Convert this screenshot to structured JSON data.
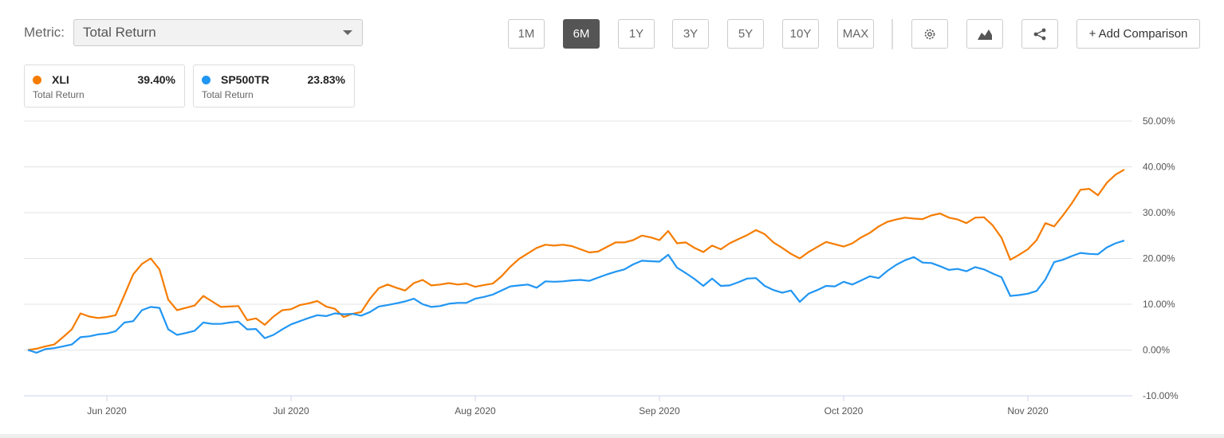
{
  "controls": {
    "metric_label": "Metric:",
    "metric": "Total Return",
    "periods": [
      "1M",
      "6M",
      "1Y",
      "3Y",
      "5Y",
      "10Y",
      "MAX"
    ],
    "selected_period": "6M",
    "add_comparison": "+ Add Comparison"
  },
  "chart_data": {
    "type": "line",
    "categories": [
      null,
      null,
      null,
      null,
      null,
      null,
      null,
      null,
      null,
      "Jun 2020",
      null,
      null,
      null,
      null,
      null,
      null,
      null,
      null,
      null,
      null,
      null,
      null,
      null,
      null,
      null,
      null,
      null,
      null,
      null,
      null,
      "Jul 2020",
      null,
      null,
      null,
      null,
      null,
      null,
      null,
      null,
      null,
      null,
      null,
      null,
      null,
      null,
      null,
      null,
      null,
      null,
      null,
      null,
      "Aug 2020",
      null,
      null,
      null,
      null,
      null,
      null,
      null,
      null,
      null,
      null,
      null,
      null,
      null,
      null,
      null,
      null,
      null,
      null,
      null,
      null,
      "Sep 2020",
      null,
      null,
      null,
      null,
      null,
      null,
      null,
      null,
      null,
      null,
      null,
      null,
      null,
      null,
      null,
      null,
      null,
      null,
      null,
      null,
      "Oct 2020",
      null,
      null,
      null,
      null,
      null,
      null,
      null,
      null,
      null,
      null,
      null,
      null,
      null,
      null,
      null,
      null,
      null,
      null,
      null,
      null,
      "Nov 2020",
      null,
      null,
      null,
      null,
      null,
      null,
      null,
      null,
      null,
      null,
      null
    ],
    "series": [
      {
        "name": "XLI",
        "color": "#f57c00",
        "metric": "Total Return",
        "summary": {
          "value": 39.4,
          "label": "39.40%"
        },
        "values": [
          0,
          0.3,
          0.8,
          1.2,
          2.8,
          4.5,
          8.0,
          7.3,
          7.0,
          7.2,
          7.6,
          12.0,
          16.5,
          18.8,
          20.0,
          17.6,
          11,
          8.7,
          9.2,
          9.7,
          11.8,
          10.6,
          9.4,
          9.5,
          9.6,
          6.5,
          6.9,
          5.5,
          7.3,
          8.7,
          8.9,
          9.8,
          10.2,
          10.7,
          9.5,
          9.0,
          7.2,
          7.9,
          8.3,
          11.2,
          13.5,
          14.3,
          13.6,
          13.0,
          14.6,
          15.3,
          14.1,
          14.3,
          14.6,
          14.3,
          14.5,
          13.8,
          14.2,
          14.5,
          16.1,
          18.2,
          19.9,
          21.1,
          22.3,
          23.0,
          22.8,
          23.0,
          22.7,
          22.0,
          21.3,
          21.5,
          22.5,
          23.5,
          23.5,
          24.0,
          25.0,
          24.6,
          24.0,
          26.0,
          23.3,
          23.5,
          22.3,
          21.4,
          22.8,
          22.0,
          23.3,
          24.2,
          25.1,
          26.2,
          25.3,
          23.5,
          22.3,
          21.0,
          20.0,
          21.4,
          22.5,
          23.6,
          23.1,
          22.6,
          23.3,
          24.6,
          25.6,
          27.0,
          28.0,
          28.5,
          28.9,
          28.7,
          28.6,
          29.4,
          29.8,
          28.9,
          28.5,
          27.7,
          28.9,
          29.0,
          27.2,
          24.5,
          19.7,
          20.8,
          22.0,
          24.0,
          27.7,
          27.0,
          29.4,
          32.0,
          35.0,
          35.2,
          33.8,
          36.5,
          38.3,
          39.4
        ]
      },
      {
        "name": "SP500TR",
        "color": "#2196f3",
        "metric": "Total Return",
        "summary": {
          "value": 23.83,
          "label": "23.83%"
        },
        "values": [
          0,
          -0.6,
          0.2,
          0.4,
          0.8,
          1.2,
          2.8,
          3.0,
          3.4,
          3.6,
          4.1,
          6.0,
          6.3,
          8.7,
          9.4,
          9.2,
          4.5,
          3.3,
          3.7,
          4.2,
          6.0,
          5.7,
          5.7,
          6.0,
          6.2,
          4.5,
          4.6,
          2.6,
          3.3,
          4.5,
          5.6,
          6.3,
          7.0,
          7.6,
          7.4,
          8.0,
          7.8,
          7.9,
          7.5,
          8.3,
          9.5,
          9.8,
          10.2,
          10.6,
          11.2,
          10.0,
          9.4,
          9.6,
          10.1,
          10.3,
          10.3,
          11.2,
          11.6,
          12.1,
          13.0,
          13.9,
          14.1,
          14.3,
          13.6,
          15.0,
          14.9,
          15.0,
          15.2,
          15.3,
          15.1,
          15.8,
          16.5,
          17.1,
          17.6,
          18.7,
          19.5,
          19.4,
          19.3,
          20.8,
          18.0,
          16.8,
          15.5,
          14.0,
          15.6,
          14.0,
          14.1,
          14.8,
          15.6,
          15.7,
          14.0,
          13.1,
          12.5,
          13.0,
          10.5,
          12.3,
          13.1,
          14.0,
          13.9,
          14.9,
          14.3,
          15.2,
          16.1,
          15.7,
          17.3,
          18.6,
          19.6,
          20.3,
          19.1,
          19.0,
          18.3,
          17.5,
          17.7,
          17.2,
          18.1,
          17.6,
          16.7,
          15.9,
          11.8,
          12.0,
          12.3,
          12.9,
          15.4,
          19.2,
          19.7,
          20.5,
          21.2,
          21.0,
          20.9,
          22.4,
          23.3,
          23.9
        ]
      }
    ],
    "ylim": [
      -10,
      50
    ],
    "yticks": [
      {
        "value": -10,
        "label": "-10.00%"
      },
      {
        "value": 0,
        "label": "0.00%"
      },
      {
        "value": 10,
        "label": "10.00%"
      },
      {
        "value": 20,
        "label": "20.00%"
      },
      {
        "value": 30,
        "label": "30.00%"
      },
      {
        "value": 40,
        "label": "40.00%"
      },
      {
        "value": 50,
        "label": "50.00%"
      }
    ],
    "grid": true
  }
}
